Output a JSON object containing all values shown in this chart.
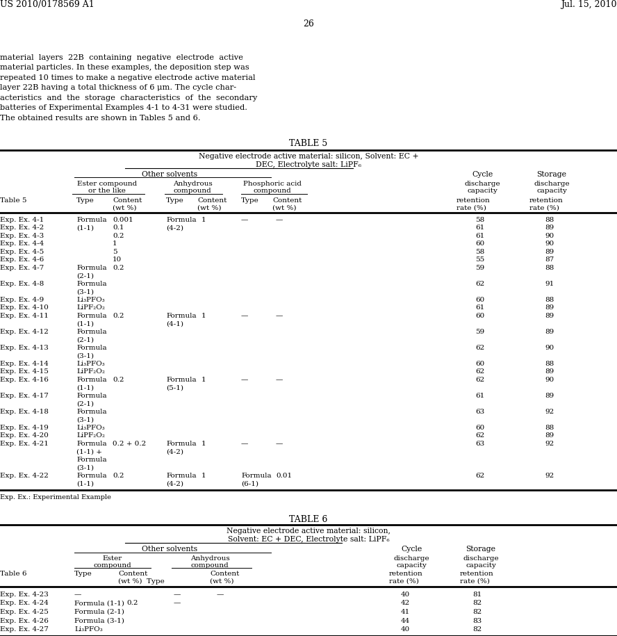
{
  "bg_color": "#ffffff",
  "header_left": "US 2010/0178569 A1",
  "header_right": "Jul. 15, 2010",
  "page_number": "26"
}
